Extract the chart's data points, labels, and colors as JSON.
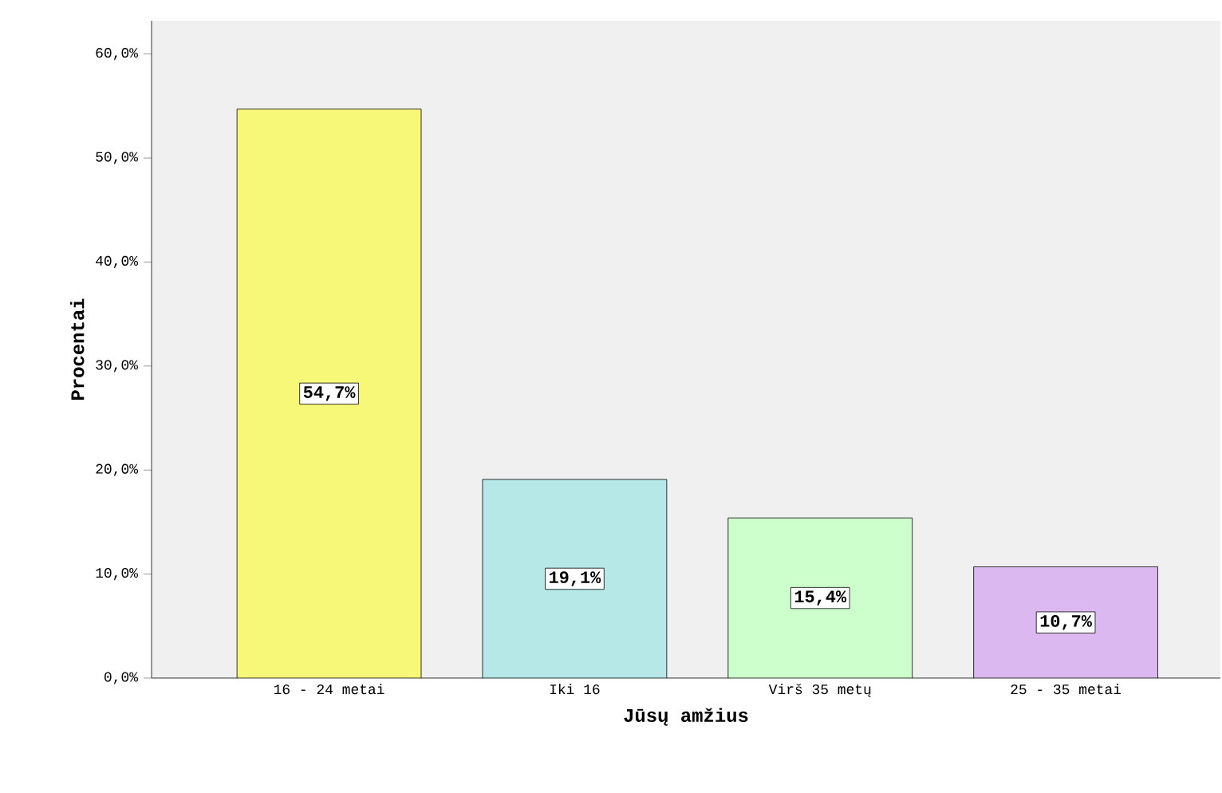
{
  "chart_data": {
    "type": "bar",
    "xlabel": "Jūsų amžius",
    "ylabel": "Procentai",
    "categories": [
      "16 - 24 metai",
      "Iki 16",
      "Virš 35 metų",
      "25 - 35 metai"
    ],
    "values": [
      54.7,
      19.1,
      15.4,
      10.7
    ],
    "colors": [
      "#f8f878",
      "#b6e8e8",
      "#ccffcc",
      "#dcb8f0"
    ],
    "value_labels": [
      "54,7%",
      "19,1%",
      "15,4%",
      "10,7%"
    ],
    "ylim": [
      0,
      63.2
    ],
    "yticks": [
      {
        "value": 0,
        "label": "0,0%"
      },
      {
        "value": 10,
        "label": "10,0%"
      },
      {
        "value": 20,
        "label": "20,0%"
      },
      {
        "value": 30,
        "label": "30,0%"
      },
      {
        "value": 40,
        "label": "40,0%"
      },
      {
        "value": 50,
        "label": "50,0%"
      },
      {
        "value": 60,
        "label": "60,0%"
      }
    ],
    "grid": false
  }
}
